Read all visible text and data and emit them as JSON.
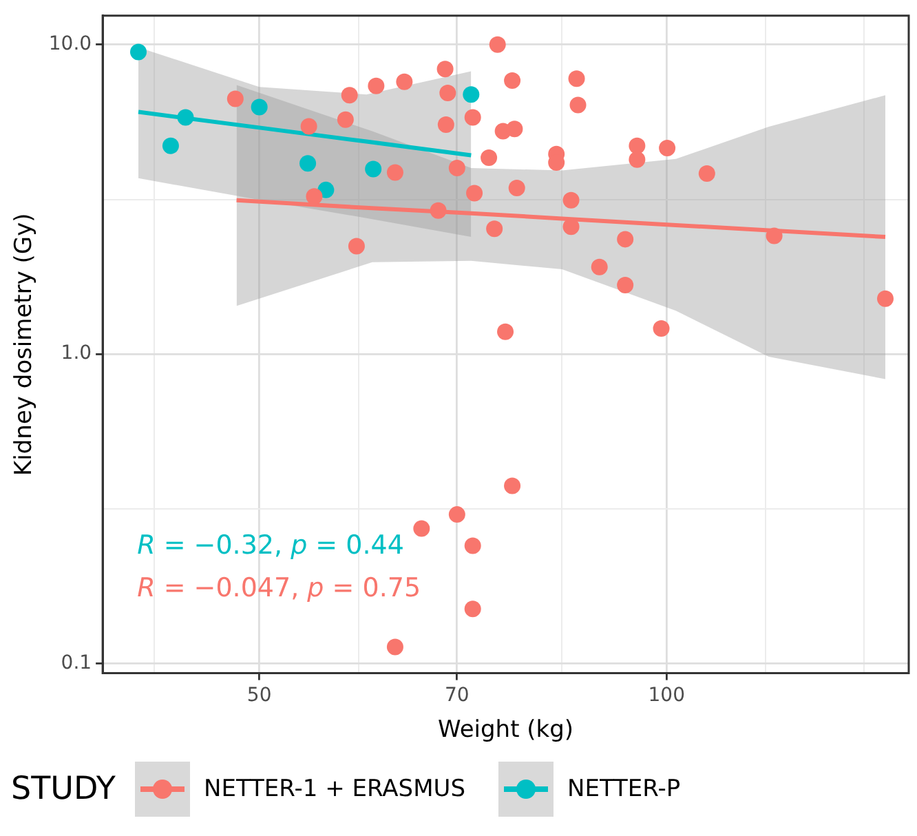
{
  "chart_data": {
    "type": "scatter",
    "xlabel": "Weight (kg)",
    "ylabel": "Kidney dosimetry (Gy)",
    "legend_title": "STUDY",
    "log": "xy",
    "grid": true,
    "legend": "bottom",
    "line_style": "solid",
    "xlim": [
      38.3,
      151
    ],
    "ylim": [
      0.093,
      12.4
    ],
    "xticks": [
      {
        "value": 41.8,
        "label": null
      },
      50,
      {
        "value": 59.2,
        "label": null
      },
      70,
      {
        "value": 83.7,
        "label": null
      },
      100,
      {
        "value": 118.3,
        "label": null
      },
      {
        "value": 140,
        "label": null
      }
    ],
    "yticks": [
      0.1,
      {
        "value": 0.316,
        "label": null
      },
      {
        "value": 1,
        "label": "1.0"
      },
      {
        "value": 3.16,
        "label": null
      },
      {
        "value": 10,
        "label": "10.0"
      }
    ],
    "series": [
      {
        "name": "NETTER-1 + ERASMUS",
        "marker": "circle",
        "color": "#f8766d",
        "x": [
          48.0,
          54.4,
          57.9,
          58.3,
          59.0,
          54.9,
          61.0,
          64.0,
          63.0,
          68.6,
          68.9,
          68.7,
          67.8,
          70.0,
          71.9,
          72.1,
          73.9,
          74.6,
          75.0,
          76.0,
          76.9,
          75.7,
          77.2,
          77.5,
          85.8,
          86.0,
          82.9,
          82.9,
          95.1,
          95.1,
          100.1,
          107.1,
          85.0,
          85.0,
          93.2,
          89.2,
          93.2,
          120.1,
          145.1,
          99.1,
          70.0,
          65.9,
          71.9,
          71.9,
          63.0,
          76.9
        ],
        "values": [
          6.68,
          5.44,
          5.72,
          6.86,
          2.23,
          3.23,
          7.35,
          7.58,
          3.86,
          8.34,
          6.98,
          5.51,
          2.91,
          3.99,
          5.82,
          3.31,
          4.31,
          2.54,
          10.0,
          1.18,
          7.65,
          5.25,
          5.34,
          3.44,
          7.76,
          6.38,
          4.43,
          4.16,
          4.71,
          4.25,
          4.63,
          3.83,
          3.14,
          2.58,
          2.35,
          1.91,
          1.67,
          2.41,
          1.51,
          1.21,
          0.303,
          0.273,
          0.24,
          0.15,
          0.113,
          0.375
        ]
      },
      {
        "name": "NETTER-P",
        "marker": "circle",
        "color": "#00bfc4",
        "x": [
          40.7,
          44.1,
          43.0,
          50.0,
          54.3,
          56.0,
          60.7,
          71.7
        ],
        "values": [
          9.47,
          5.82,
          4.71,
          6.28,
          4.13,
          3.39,
          3.96,
          6.9
        ]
      },
      {
        "type": "line",
        "marker": "none",
        "color": "#f8766d",
        "x": [
          48.1,
          60.6,
          71.7,
          83.7,
          101.6,
          119,
          145.1
        ],
        "values": [
          3.14,
          2.96,
          2.85,
          2.74,
          2.61,
          2.51,
          2.39
        ],
        "lower": [
          1.43,
          1.98,
          2.0,
          1.88,
          1.38,
          0.98,
          0.83
        ],
        "upper": [
          7.4,
          5.25,
          3.99,
          3.92,
          4.27,
          5.43,
          6.86
        ]
      },
      {
        "type": "line",
        "marker": "none",
        "color": "#00bfc4",
        "x": [
          40.7,
          50,
          60,
          71.7
        ],
        "values": [
          6.06,
          5.39,
          4.86,
          4.39
        ],
        "lower": [
          3.7,
          3.15,
          2.75,
          2.39
        ],
        "upper": [
          9.8,
          7.3,
          6.9,
          8.2
        ]
      }
    ],
    "annotations": [
      "R = −0.32, p = 0.44",
      "R = −0.047, p = 0.75"
    ]
  }
}
